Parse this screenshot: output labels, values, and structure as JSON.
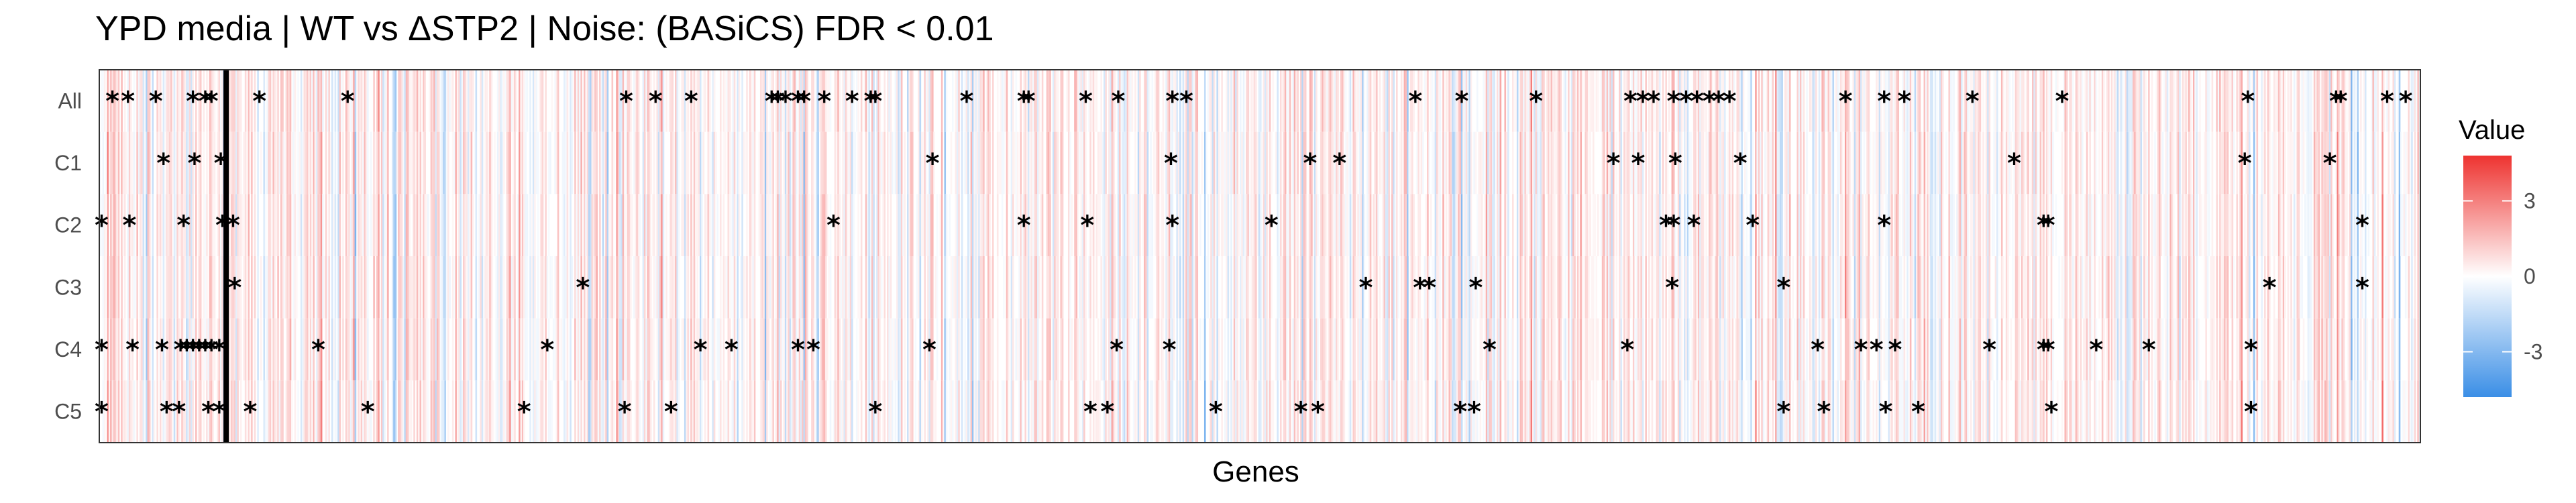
{
  "chart_data": {
    "type": "heatmap",
    "title": "YPD media | WT vs ΔSTP2 | Noise: (BASiCS) FDR < 0.01",
    "xlabel": "Genes",
    "ylabel": "",
    "rows": [
      "All",
      "C1",
      "C2",
      "C3",
      "C4",
      "C5"
    ],
    "n_genes": 1500,
    "separator_gene_index": 82,
    "significance_marker": "*",
    "legend": {
      "title": "Value",
      "ticks": [
        3,
        0,
        -3
      ],
      "range": [
        -4.8,
        4.8
      ],
      "low_color": "#3a8ee6",
      "mid_color": "#ffffff",
      "high_color": "#ee3330",
      "placement": "right"
    },
    "significant_genes": {
      "All": [
        8,
        18,
        36,
        60,
        68,
        72,
        103,
        160,
        340,
        359,
        382,
        434,
        438,
        443,
        451,
        455,
        468,
        486,
        498,
        501,
        560,
        597,
        600,
        637,
        658,
        693,
        702,
        850,
        880,
        928,
        989,
        997,
        1004,
        1017,
        1025,
        1032,
        1040,
        1046,
        1053,
        1128,
        1153,
        1166,
        1210,
        1268,
        1388,
        1445,
        1448,
        1478,
        1490
      ],
      "C1": [
        41,
        61,
        78,
        538,
        692,
        782,
        801,
        978,
        994,
        1018,
        1060,
        1237,
        1386,
        1441
      ],
      "C2": [
        1,
        19,
        54,
        79,
        86,
        474,
        597,
        638,
        693,
        757,
        1012,
        1017,
        1030,
        1068,
        1153,
        1256,
        1259,
        1462
      ],
      "C3": [
        87,
        312,
        818,
        853,
        859,
        889,
        1016,
        1088,
        1402,
        1462
      ],
      "C4": [
        1,
        21,
        40,
        52,
        56,
        60,
        64,
        68,
        72,
        77,
        141,
        289,
        388,
        408,
        451,
        461,
        536,
        657,
        691,
        898,
        987,
        1110,
        1138,
        1148,
        1160,
        1221,
        1256,
        1259,
        1290,
        1324,
        1390
      ],
      "C5": [
        1,
        43,
        51,
        70,
        77,
        97,
        173,
        274,
        339,
        369,
        501,
        640,
        651,
        721,
        776,
        787,
        879,
        888,
        1088,
        1114,
        1154,
        1175,
        1261,
        1390
      ]
    }
  }
}
